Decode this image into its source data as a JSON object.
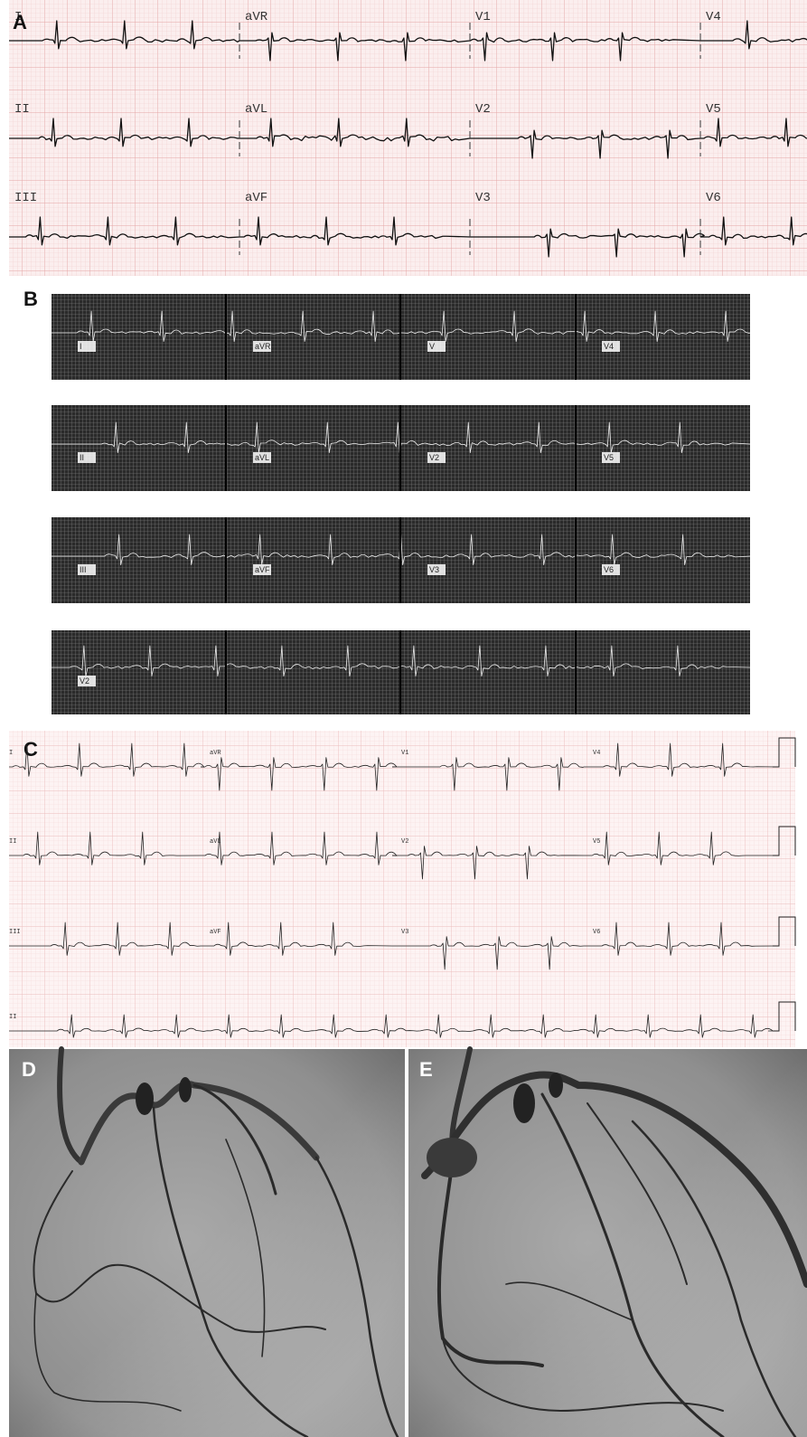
{
  "panels": [
    {
      "label": "A",
      "leads": [
        [
          "I",
          "aVR",
          "V1",
          "V4"
        ],
        [
          "II",
          "aVL",
          "V2",
          "V5"
        ],
        [
          "III",
          "aVF",
          "V3",
          "V6"
        ]
      ]
    },
    {
      "label": "B",
      "leads": [
        [
          "I",
          "aVR",
          "V",
          "V4"
        ],
        [
          "II",
          "aVL",
          "V2",
          "V5"
        ],
        [
          "III",
          "aVF",
          "V3",
          "V6"
        ],
        [
          "V2"
        ]
      ]
    },
    {
      "label": "C",
      "leads": [
        [
          "I",
          "aVR",
          "V1",
          "V4"
        ],
        [
          "II",
          "aVL",
          "V2",
          "V5"
        ],
        [
          "III",
          "aVF",
          "V3",
          "V6"
        ],
        [
          "II"
        ]
      ]
    },
    {
      "label": "D"
    },
    {
      "label": "E"
    }
  ]
}
